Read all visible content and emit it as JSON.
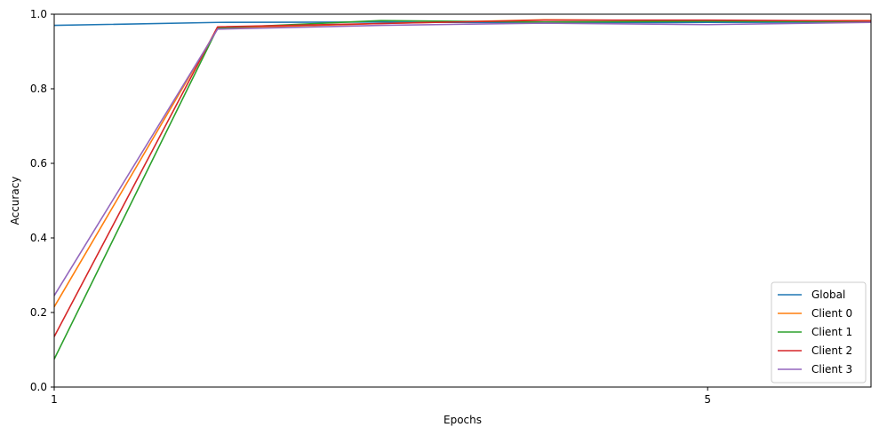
{
  "chart_data": {
    "type": "line",
    "title": "",
    "xlabel": "Epochs",
    "ylabel": "Accuracy",
    "x": [
      1,
      2,
      3,
      4,
      5,
      6
    ],
    "xlim": [
      1,
      6
    ],
    "ylim": [
      0,
      1
    ],
    "xticks": [
      1,
      5
    ],
    "xtick_labels": [
      "1",
      "5"
    ],
    "yticks": [
      0.0,
      0.2,
      0.4,
      0.6,
      0.8,
      1.0
    ],
    "ytick_labels": [
      "0.0",
      "0.2",
      "0.4",
      "0.6",
      "0.8",
      "1.0"
    ],
    "grid": false,
    "legend_position": "bottom-right",
    "series": [
      {
        "name": "Global",
        "color": "#1f77b4",
        "values": [
          0.97,
          0.978,
          0.979,
          0.977,
          0.978,
          0.979
        ]
      },
      {
        "name": "Client 0",
        "color": "#ff7f0e",
        "values": [
          0.215,
          0.962,
          0.975,
          0.985,
          0.982,
          0.983
        ]
      },
      {
        "name": "Client 1",
        "color": "#2ca02c",
        "values": [
          0.075,
          0.963,
          0.983,
          0.979,
          0.981,
          0.98
        ]
      },
      {
        "name": "Client 2",
        "color": "#d62728",
        "values": [
          0.135,
          0.966,
          0.975,
          0.984,
          0.984,
          0.982
        ]
      },
      {
        "name": "Client 3",
        "color": "#9467bd",
        "values": [
          0.245,
          0.96,
          0.97,
          0.976,
          0.972,
          0.978
        ]
      }
    ]
  }
}
